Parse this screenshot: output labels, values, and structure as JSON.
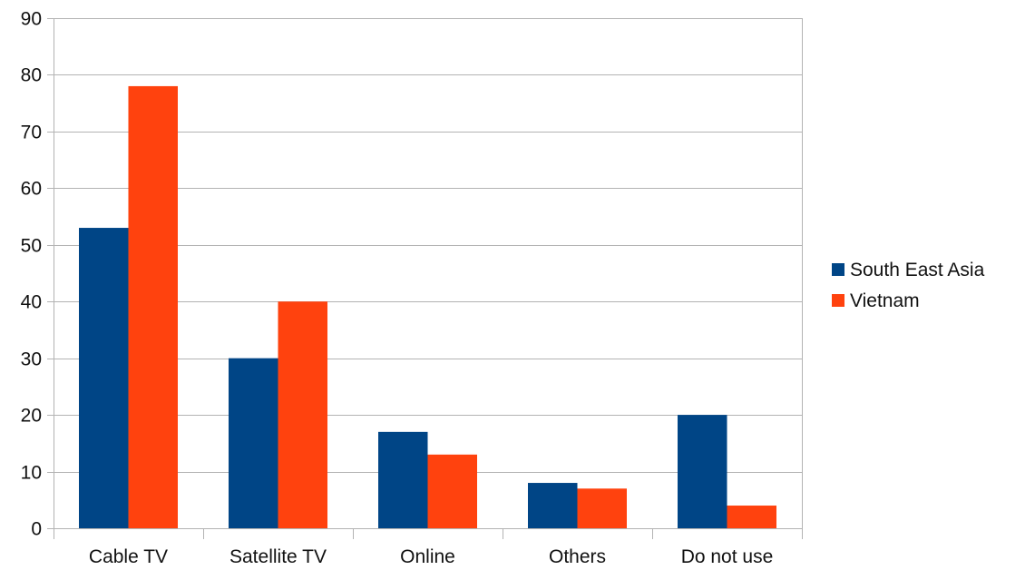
{
  "chart_data": {
    "type": "bar",
    "title": "",
    "xlabel": "",
    "ylabel": "",
    "categories": [
      "Cable TV",
      "Satellite TV",
      "Online",
      "Others",
      "Do not use"
    ],
    "series": [
      {
        "name": "South East Asia",
        "color": "#004586",
        "values": [
          53,
          30,
          17,
          8,
          20
        ]
      },
      {
        "name": "Vietnam",
        "color": "#ff420e",
        "values": [
          78,
          40,
          13,
          7,
          4
        ]
      }
    ],
    "ylim": [
      0,
      90
    ],
    "yticks": [
      0,
      10,
      20,
      30,
      40,
      50,
      60,
      70,
      80,
      90
    ],
    "grid": true,
    "legend_position": "right"
  }
}
